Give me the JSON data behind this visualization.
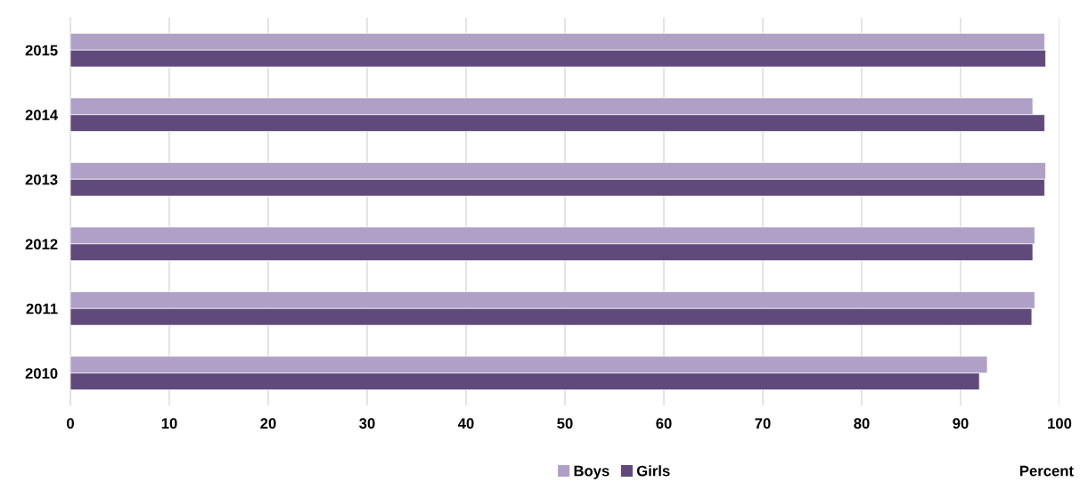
{
  "chart_data": {
    "type": "bar",
    "orientation": "horizontal",
    "categories": [
      "2015",
      "2014",
      "2013",
      "2012",
      "2011",
      "2010"
    ],
    "series": [
      {
        "name": "Boys",
        "color": "#b09fc6",
        "values": [
          98.5,
          97.3,
          98.6,
          97.5,
          97.5,
          92.7
        ]
      },
      {
        "name": "Girls",
        "color": "#604a7b",
        "values": [
          98.6,
          98.5,
          98.5,
          97.3,
          97.2,
          91.9
        ]
      }
    ],
    "xlim": [
      0,
      100
    ],
    "xticks": [
      0,
      10,
      20,
      30,
      40,
      50,
      60,
      70,
      80,
      90,
      100
    ],
    "xlabel": "Percent",
    "grid": "x",
    "legend": "bottom"
  }
}
